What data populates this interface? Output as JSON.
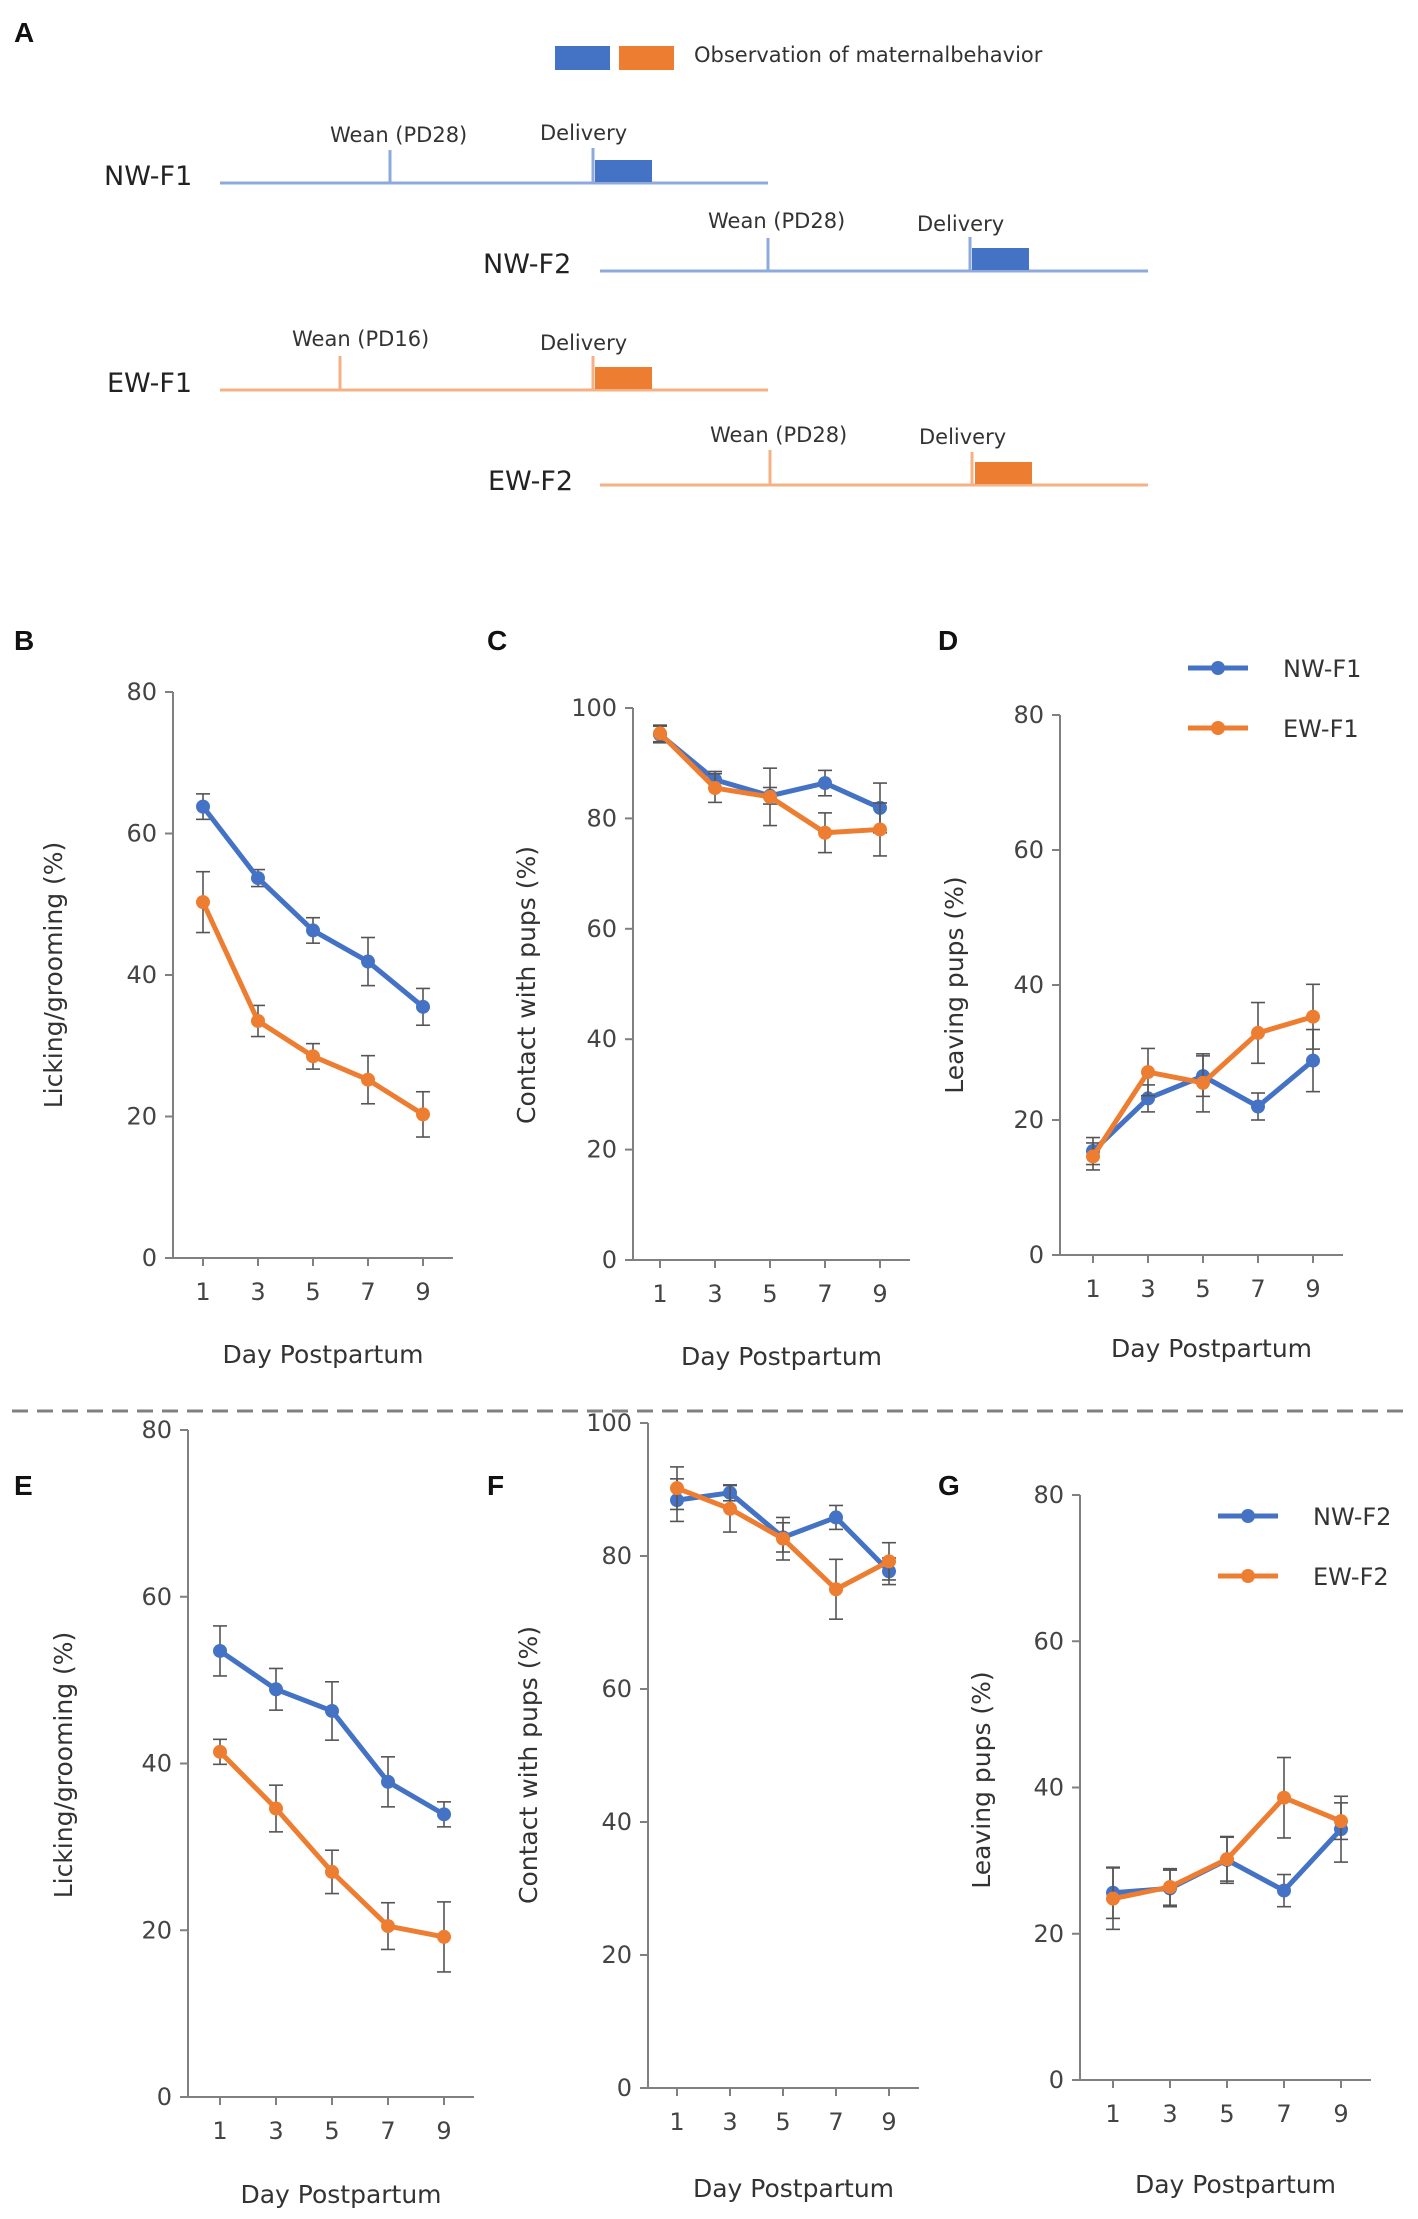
{
  "colors": {
    "nw": "#4472C4",
    "ew": "#ED7D31",
    "nw_light": "#8EA9DB",
    "ew_light": "#F4B183",
    "axis": "#808080",
    "divider": "#808080"
  },
  "panel_a": {
    "letter": "A",
    "legend_label": "Observation of maternalbehavior",
    "timelines": [
      {
        "name": "NW-F1",
        "group": "nw",
        "wean_label": "Wean (PD28)",
        "delivery_label": "Delivery"
      },
      {
        "name": "NW-F2",
        "group": "nw",
        "wean_label": "Wean (PD28)",
        "delivery_label": "Delivery"
      },
      {
        "name": "EW-F1",
        "group": "ew",
        "wean_label": "Wean (PD16)",
        "delivery_label": "Delivery"
      },
      {
        "name": "EW-F2",
        "group": "ew",
        "wean_label": "Wean (PD28)",
        "delivery_label": "Delivery"
      }
    ]
  },
  "chart_data": [
    {
      "panel": "B",
      "type": "line",
      "xlabel": "Day Postpartum",
      "ylabel": "Licking/grooming (%)",
      "ylim": [
        0,
        80
      ],
      "yticks": [
        0,
        20,
        40,
        60,
        80
      ],
      "categories": [
        "1",
        "3",
        "5",
        "7",
        "9"
      ],
      "series": [
        {
          "name": "NW-F1",
          "group": "nw",
          "values": [
            63.8,
            53.7,
            46.3,
            41.9,
            35.5
          ],
          "errors": [
            1.8,
            1.2,
            1.8,
            3.4,
            2.6
          ]
        },
        {
          "name": "EW-F1",
          "group": "ew",
          "values": [
            50.3,
            33.5,
            28.5,
            25.2,
            20.3
          ],
          "errors": [
            4.3,
            2.2,
            1.8,
            3.4,
            3.2
          ]
        }
      ]
    },
    {
      "panel": "C",
      "type": "line",
      "xlabel": "Day Postpartum",
      "ylabel": "Contact with pups (%)",
      "ylim": [
        0,
        100
      ],
      "yticks": [
        0,
        20,
        40,
        60,
        80,
        100
      ],
      "categories": [
        "1",
        "3",
        "5",
        "7",
        "9"
      ],
      "series": [
        {
          "name": "NW-F1",
          "group": "nw",
          "values": [
            95.2,
            87.0,
            84.1,
            86.4,
            81.9
          ],
          "errors": [
            1.5,
            1.5,
            1.5,
            2.3,
            4.5
          ]
        },
        {
          "name": "EW-F1",
          "group": "ew",
          "values": [
            95.4,
            85.5,
            83.9,
            77.4,
            78.0
          ],
          "errors": [
            1.5,
            2.6,
            5.2,
            3.6,
            4.8
          ]
        }
      ]
    },
    {
      "panel": "D",
      "type": "line",
      "xlabel": "Day Postpartum",
      "ylabel": "Leaving pups  (%)",
      "ylim": [
        0,
        80
      ],
      "yticks": [
        0,
        20,
        40,
        60,
        80
      ],
      "categories": [
        "1",
        "3",
        "5",
        "7",
        "9"
      ],
      "legend": {
        "position": "top-right",
        "entries": [
          "NW-F1",
          "EW-F1"
        ]
      },
      "series": [
        {
          "name": "NW-F1",
          "group": "nw",
          "values": [
            15.4,
            23.2,
            26.5,
            22.0,
            28.8
          ],
          "errors": [
            2.0,
            2.0,
            3.0,
            2.0,
            4.6
          ]
        },
        {
          "name": "EW-F1",
          "group": "ew",
          "values": [
            14.6,
            27.1,
            25.5,
            32.9,
            35.3
          ],
          "errors": [
            2.0,
            3.5,
            4.3,
            4.5,
            4.8
          ]
        }
      ]
    },
    {
      "panel": "E",
      "type": "line",
      "xlabel": "Day Postpartum",
      "ylabel": "Licking/grooming  (%)",
      "ylim": [
        0,
        80
      ],
      "yticks": [
        0,
        20,
        40,
        60,
        80
      ],
      "categories": [
        "1",
        "3",
        "5",
        "7",
        "9"
      ],
      "series": [
        {
          "name": "NW-F2",
          "group": "nw",
          "values": [
            53.5,
            48.9,
            46.3,
            37.8,
            33.9
          ],
          "errors": [
            3.0,
            2.5,
            3.5,
            3.0,
            1.5
          ]
        },
        {
          "name": "EW-F2",
          "group": "ew",
          "values": [
            41.4,
            34.6,
            27.0,
            20.5,
            19.2
          ],
          "errors": [
            1.5,
            2.8,
            2.6,
            2.8,
            4.2
          ]
        }
      ]
    },
    {
      "panel": "F",
      "type": "line",
      "xlabel": "Day Postpartum",
      "ylabel": "Contact  with pups (%)",
      "ylim": [
        0,
        100
      ],
      "yticks": [
        0,
        20,
        40,
        60,
        80,
        100
      ],
      "categories": [
        "1",
        "3",
        "5",
        "7",
        "9"
      ],
      "series": [
        {
          "name": "NW-F2",
          "group": "nw",
          "values": [
            88.4,
            89.5,
            82.8,
            85.8,
            77.7
          ],
          "errors": [
            3.2,
            1.2,
            2.2,
            1.8,
            2.0
          ]
        },
        {
          "name": "EW-F2",
          "group": "ew",
          "values": [
            90.2,
            87.1,
            82.6,
            75.0,
            79.2
          ],
          "errors": [
            3.2,
            3.5,
            3.2,
            4.5,
            2.8
          ]
        }
      ]
    },
    {
      "panel": "G",
      "type": "line",
      "xlabel": "Day Postpartum",
      "ylabel": "Leaving pups (%)",
      "ylim": [
        0,
        80
      ],
      "yticks": [
        0,
        20,
        40,
        60,
        80
      ],
      "categories": [
        "1",
        "3",
        "5",
        "7",
        "9"
      ],
      "legend": {
        "position": "top-right",
        "entries": [
          "NW-F2",
          "EW-F2"
        ]
      },
      "series": [
        {
          "name": "NW-F2",
          "group": "nw",
          "values": [
            25.6,
            26.2,
            30.1,
            25.9,
            34.3
          ],
          "errors": [
            3.5,
            2.5,
            3.2,
            2.2,
            4.5
          ]
        },
        {
          "name": "EW-F2",
          "group": "ew",
          "values": [
            24.8,
            26.4,
            30.2,
            38.6,
            35.4
          ],
          "errors": [
            4.2,
            2.5,
            3.0,
            5.5,
            2.5
          ]
        }
      ]
    }
  ]
}
